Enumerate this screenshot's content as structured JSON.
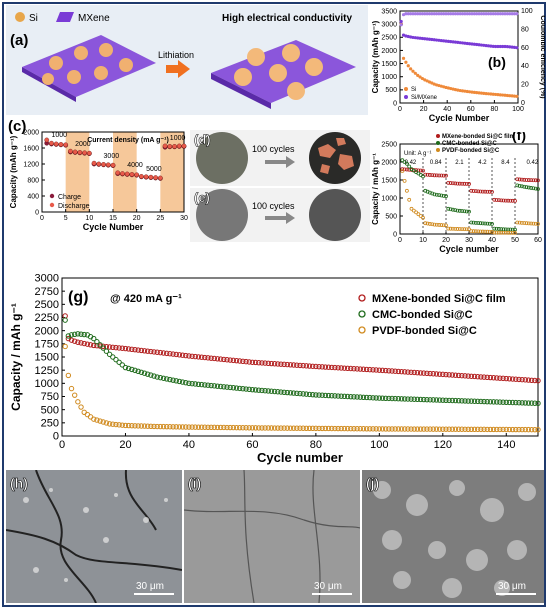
{
  "colors": {
    "red": "#b11c1c",
    "green": "#1f6b1c",
    "orange": "#d08a1e",
    "purple": "#7a3bd6",
    "purple_light": "#a57ae6",
    "si_orange": "#ef8a3a",
    "band": "#f6c89a"
  },
  "panel_a": {
    "label": "(a)",
    "legend_si": "Si",
    "legend_mxene": "MXene",
    "arrow_text": "Lithiation",
    "right_text": "High electrical conductivity"
  },
  "panel_b": {
    "label": "(b)"
  },
  "panel_c": {
    "label": "(c)"
  },
  "panel_d": {
    "label": "(d)",
    "arrow_text": "100 cycles"
  },
  "panel_e": {
    "label": "(e)",
    "arrow_text": "100 cycles"
  },
  "panel_f": {
    "label": "(f)"
  },
  "panel_g": {
    "label": "(g)",
    "annotation": "@ 420 mA g⁻¹"
  },
  "panel_h": {
    "label": "(h)",
    "scale": "30 μm"
  },
  "panel_i": {
    "label": "(i)",
    "scale": "30 μm"
  },
  "panel_j": {
    "label": "(j)",
    "scale": "30 μm"
  },
  "chart_data": [
    {
      "id": "b",
      "type": "scatter",
      "xlabel": "Cycle Number",
      "ylabel": "Capacity (mAh g⁻¹)",
      "y2label": "Coulombic efficiency (%)",
      "xlim": [
        0,
        100
      ],
      "ylim": [
        0,
        3500
      ],
      "y2lim": [
        0,
        100
      ],
      "xticks": [
        0,
        20,
        40,
        60,
        80,
        100
      ],
      "yticks": [
        0,
        500,
        1000,
        1500,
        2000,
        2500,
        3000,
        3500
      ],
      "y2ticks": [
        0,
        20,
        40,
        60,
        80,
        100
      ],
      "legend": [
        "Si",
        "Si/MXene"
      ],
      "series": [
        {
          "name": "Si",
          "x": [
            1,
            2,
            3,
            5,
            8,
            10,
            15,
            20,
            25,
            30,
            40,
            50,
            60,
            70,
            80,
            90,
            100
          ],
          "y": [
            3000,
            2050,
            1700,
            1550,
            1350,
            1250,
            1050,
            900,
            800,
            700,
            580,
            480,
            420,
            370,
            330,
            290,
            250
          ]
        },
        {
          "name": "Si/MXene",
          "x": [
            1,
            2,
            5,
            10,
            20,
            30,
            40,
            50,
            60,
            70,
            80,
            90,
            100
          ],
          "y": [
            3100,
            2600,
            2550,
            2500,
            2450,
            2400,
            2350,
            2300,
            2250,
            2200,
            2150,
            2150,
            2100
          ]
        },
        {
          "name": "CE",
          "x": [
            1,
            3,
            5,
            10,
            20,
            40,
            60,
            80,
            100
          ],
          "y": [
            85,
            96,
            97,
            97,
            97,
            97,
            97,
            97,
            97
          ]
        }
      ]
    },
    {
      "id": "c",
      "type": "scatter",
      "title": "Current density (mA g⁻¹)",
      "xlabel": "Cycle Number",
      "ylabel": "Capacity (mAh g⁻¹)",
      "xlim": [
        0,
        30
      ],
      "ylim": [
        0,
        2000
      ],
      "xticks": [
        0,
        5,
        10,
        15,
        20,
        25,
        30
      ],
      "yticks": [
        0,
        200,
        400,
        600,
        800,
        1000,
        1200,
        1400,
        1600,
        1800,
        2000
      ],
      "legend": [
        "Charge",
        "Discharge"
      ],
      "rate_labels": [
        "1000",
        "2000",
        "3000",
        "4000",
        "5000",
        "1000"
      ],
      "series": [
        {
          "name": "Charge",
          "x": [
            1,
            2,
            3,
            4,
            5,
            6,
            7,
            8,
            9,
            10,
            11,
            12,
            13,
            14,
            15,
            16,
            17,
            18,
            19,
            20,
            21,
            22,
            23,
            24,
            25,
            26,
            27,
            28,
            29,
            30
          ],
          "y": [
            1720,
            1700,
            1690,
            1680,
            1670,
            1500,
            1490,
            1480,
            1470,
            1460,
            1200,
            1190,
            1180,
            1170,
            1160,
            960,
            950,
            940,
            930,
            920,
            880,
            870,
            860,
            850,
            840,
            1620,
            1630,
            1630,
            1640,
            1640
          ]
        },
        {
          "name": "Discharge",
          "x": [
            1,
            2,
            3,
            4,
            5,
            6,
            7,
            8,
            9,
            10,
            11,
            12,
            13,
            14,
            15,
            16,
            17,
            18,
            19,
            20,
            21,
            22,
            23,
            24,
            25,
            26,
            27,
            28,
            29,
            30
          ],
          "y": [
            1800,
            1720,
            1700,
            1690,
            1680,
            1520,
            1500,
            1490,
            1480,
            1470,
            1220,
            1200,
            1190,
            1180,
            1170,
            980,
            960,
            950,
            940,
            930,
            890,
            880,
            870,
            860,
            850,
            1650,
            1640,
            1640,
            1650,
            1650
          ]
        }
      ]
    },
    {
      "id": "f",
      "type": "scatter",
      "xlabel": "Cycle number",
      "ylabel": "Capacity / mAh g⁻¹",
      "xlim": [
        0,
        60
      ],
      "ylim": [
        0,
        2500
      ],
      "xticks": [
        0,
        10,
        20,
        30,
        40,
        50,
        60
      ],
      "yticks": [
        0,
        500,
        1000,
        1500,
        2000,
        2500
      ],
      "unit_label": "Unit: A g⁻¹",
      "rate_labels": [
        "0.42",
        "0.84",
        "2.1",
        "4.2",
        "8.4",
        "0.42"
      ],
      "legend": [
        "MXene-bonded Si@C film",
        "CMC-bonded Si@C",
        "PVDF-bonded Si@C"
      ],
      "series": [
        {
          "name": "MXene-bonded Si@C film",
          "x": [
            1,
            5,
            10,
            11,
            15,
            20,
            21,
            25,
            30,
            31,
            35,
            40,
            41,
            45,
            50,
            51,
            55,
            60
          ],
          "y": [
            1800,
            1780,
            1760,
            1650,
            1630,
            1620,
            1420,
            1400,
            1390,
            1200,
            1180,
            1170,
            950,
            930,
            920,
            1520,
            1500,
            1490
          ]
        },
        {
          "name": "CMC-bonded Si@C",
          "x": [
            1,
            3,
            5,
            10,
            11,
            15,
            20,
            21,
            25,
            30,
            31,
            35,
            40,
            41,
            45,
            50,
            51,
            55,
            60
          ],
          "y": [
            2050,
            1950,
            1800,
            1600,
            1200,
            1100,
            1050,
            700,
            650,
            620,
            320,
            300,
            280,
            150,
            130,
            120,
            1350,
            1300,
            1250
          ]
        },
        {
          "name": "PVDF-bonded Si@C",
          "x": [
            1,
            3,
            5,
            10,
            11,
            15,
            20,
            21,
            25,
            30,
            31,
            35,
            40,
            41,
            45,
            50,
            51,
            55,
            60
          ],
          "y": [
            1750,
            1200,
            700,
            450,
            300,
            260,
            240,
            150,
            140,
            130,
            80,
            70,
            60,
            40,
            35,
            30,
            320,
            300,
            280
          ]
        }
      ]
    },
    {
      "id": "g",
      "type": "scatter",
      "xlabel": "Cycle number",
      "ylabel": "Capacity / mAh g⁻¹",
      "xlim": [
        0,
        150
      ],
      "ylim": [
        0,
        3000
      ],
      "xticks": [
        0,
        20,
        40,
        60,
        80,
        100,
        120,
        140
      ],
      "yticks": [
        0,
        250,
        500,
        750,
        1000,
        1250,
        1500,
        1750,
        2000,
        2250,
        2500,
        2750,
        3000
      ],
      "legend": [
        "MXene-bonded Si@C film",
        "CMC-bonded Si@C",
        "PVDF-bonded Si@C"
      ],
      "series": [
        {
          "name": "MXene-bonded Si@C film",
          "x": [
            1,
            2,
            3,
            5,
            10,
            20,
            40,
            60,
            80,
            100,
            120,
            140,
            150
          ],
          "y": [
            2280,
            1850,
            1820,
            1780,
            1720,
            1660,
            1520,
            1400,
            1320,
            1250,
            1170,
            1090,
            1050
          ]
        },
        {
          "name": "CMC-bonded Si@C",
          "x": [
            1,
            2,
            3,
            5,
            8,
            10,
            15,
            20,
            30,
            40,
            60,
            80,
            100,
            120,
            140,
            150
          ],
          "y": [
            2200,
            1900,
            1920,
            1940,
            1920,
            1850,
            1550,
            1300,
            1120,
            1000,
            880,
            780,
            720,
            680,
            640,
            620
          ]
        },
        {
          "name": "PVDF-bonded Si@C",
          "x": [
            1,
            2,
            3,
            5,
            7,
            10,
            15,
            20,
            30,
            40,
            60,
            80,
            100,
            120,
            150
          ],
          "y": [
            1700,
            1150,
            900,
            650,
            450,
            320,
            230,
            200,
            180,
            170,
            155,
            145,
            135,
            130,
            120
          ]
        }
      ]
    }
  ]
}
